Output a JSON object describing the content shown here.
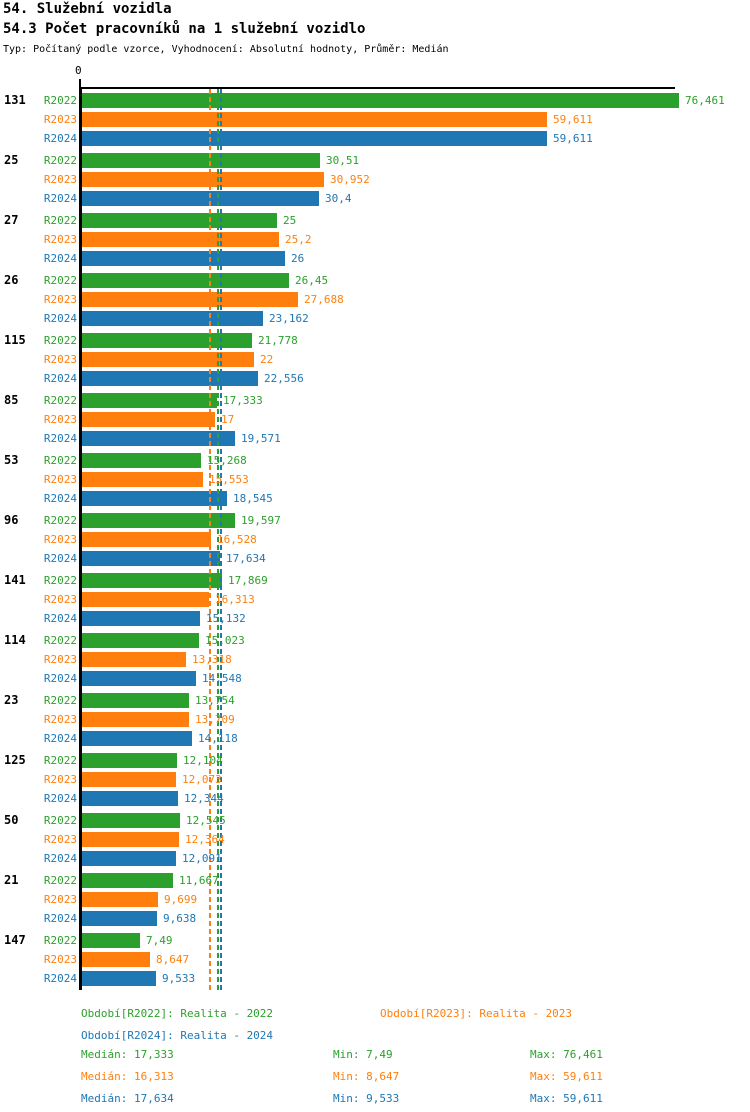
{
  "header": {
    "title1": "54. Služební vozidla",
    "title2": "54.3 Počet pracovníků na 1 služební vozidlo",
    "subtitle": "Typ: Počítaný podle vzorce, Vyhodnocení: Absolutní hodnoty, Průměr: Medián"
  },
  "colors": {
    "r2022_green": "#2ca02c",
    "r2023_orange": "#ff7f0e",
    "r2024_blue": "#1f77b4",
    "axis_black": "#000000"
  },
  "chart_data": {
    "type": "bar",
    "orientation": "horizontal",
    "axis_zero_label": "0",
    "xlim": [
      0,
      76.461
    ],
    "grid": false,
    "series_names": [
      "R2022",
      "R2023",
      "R2024"
    ],
    "series_colors": [
      "#2ca02c",
      "#ff7f0e",
      "#1f77b4"
    ],
    "groups": [
      {
        "label": "131",
        "values": [
          76.461,
          59.611,
          59.611
        ],
        "display": [
          "76,461",
          "59,611",
          "59,611"
        ]
      },
      {
        "label": "25",
        "values": [
          30.51,
          30.952,
          30.4
        ],
        "display": [
          "30,51",
          "30,952",
          "30,4"
        ]
      },
      {
        "label": "27",
        "values": [
          25,
          25.2,
          26
        ],
        "display": [
          "25",
          "25,2",
          "26"
        ]
      },
      {
        "label": "26",
        "values": [
          26.45,
          27.688,
          23.162
        ],
        "display": [
          "26,45",
          "27,688",
          "23,162"
        ]
      },
      {
        "label": "115",
        "values": [
          21.778,
          22,
          22.556
        ],
        "display": [
          "21,778",
          "22",
          "22,556"
        ]
      },
      {
        "label": "85",
        "values": [
          17.333,
          17,
          19.571
        ],
        "display": [
          "17,333",
          "17",
          "19,571"
        ]
      },
      {
        "label": "53",
        "values": [
          15.268,
          15.553,
          18.545
        ],
        "display": [
          "15,268",
          "15,553",
          "18,545"
        ]
      },
      {
        "label": "96",
        "values": [
          19.597,
          16.528,
          17.634
        ],
        "display": [
          "19,597",
          "16,528",
          "17,634"
        ]
      },
      {
        "label": "141",
        "values": [
          17.869,
          16.313,
          15.132
        ],
        "display": [
          "17,869",
          "16,313",
          "15,132"
        ]
      },
      {
        "label": "114",
        "values": [
          15.023,
          13.318,
          14.548
        ],
        "display": [
          "15,023",
          "13,318",
          "14,548"
        ]
      },
      {
        "label": "23",
        "values": [
          13.754,
          13.709,
          14.118
        ],
        "display": [
          "13,754",
          "13,709",
          "14,118"
        ]
      },
      {
        "label": "125",
        "values": [
          12.104,
          12.073,
          12.344
        ],
        "display": [
          "12,104",
          "12,073",
          "12,344"
        ]
      },
      {
        "label": "50",
        "values": [
          12.545,
          12.364,
          12.091
        ],
        "display": [
          "12,545",
          "12,364",
          "12,091"
        ]
      },
      {
        "label": "21",
        "values": [
          11.667,
          9.699,
          9.638
        ],
        "display": [
          "11,667",
          "9,699",
          "9,638"
        ]
      },
      {
        "label": "147",
        "values": [
          7.49,
          8.647,
          9.533
        ],
        "display": [
          "7,49",
          "8,647",
          "9,533"
        ]
      }
    ],
    "reference_lines": [
      {
        "name": "median-r2023",
        "value": 16.313,
        "color": "#ff7f0e"
      },
      {
        "name": "median-r2022",
        "value": 17.333,
        "color": "#2ca02c"
      },
      {
        "name": "median-r2024",
        "value": 17.634,
        "color": "#1f77b4"
      }
    ]
  },
  "footer": {
    "legend": [
      {
        "text": "Období[R2022]: Realita - 2022",
        "color": "#2ca02c"
      },
      {
        "text": "Období[R2023]: Realita - 2023",
        "color": "#ff7f0e"
      },
      {
        "text": "Období[R2024]: Realita - 2024",
        "color": "#1f77b4"
      }
    ],
    "stats": [
      {
        "median": "Medián: 17,333",
        "min": "Min: 7,49",
        "max": "Max: 76,461",
        "color": "#2ca02c"
      },
      {
        "median": "Medián: 16,313",
        "min": "Min: 8,647",
        "max": "Max: 59,611",
        "color": "#ff7f0e"
      },
      {
        "median": "Medián: 17,634",
        "min": "Min: 9,533",
        "max": "Max: 59,611",
        "color": "#1f77b4"
      }
    ]
  }
}
